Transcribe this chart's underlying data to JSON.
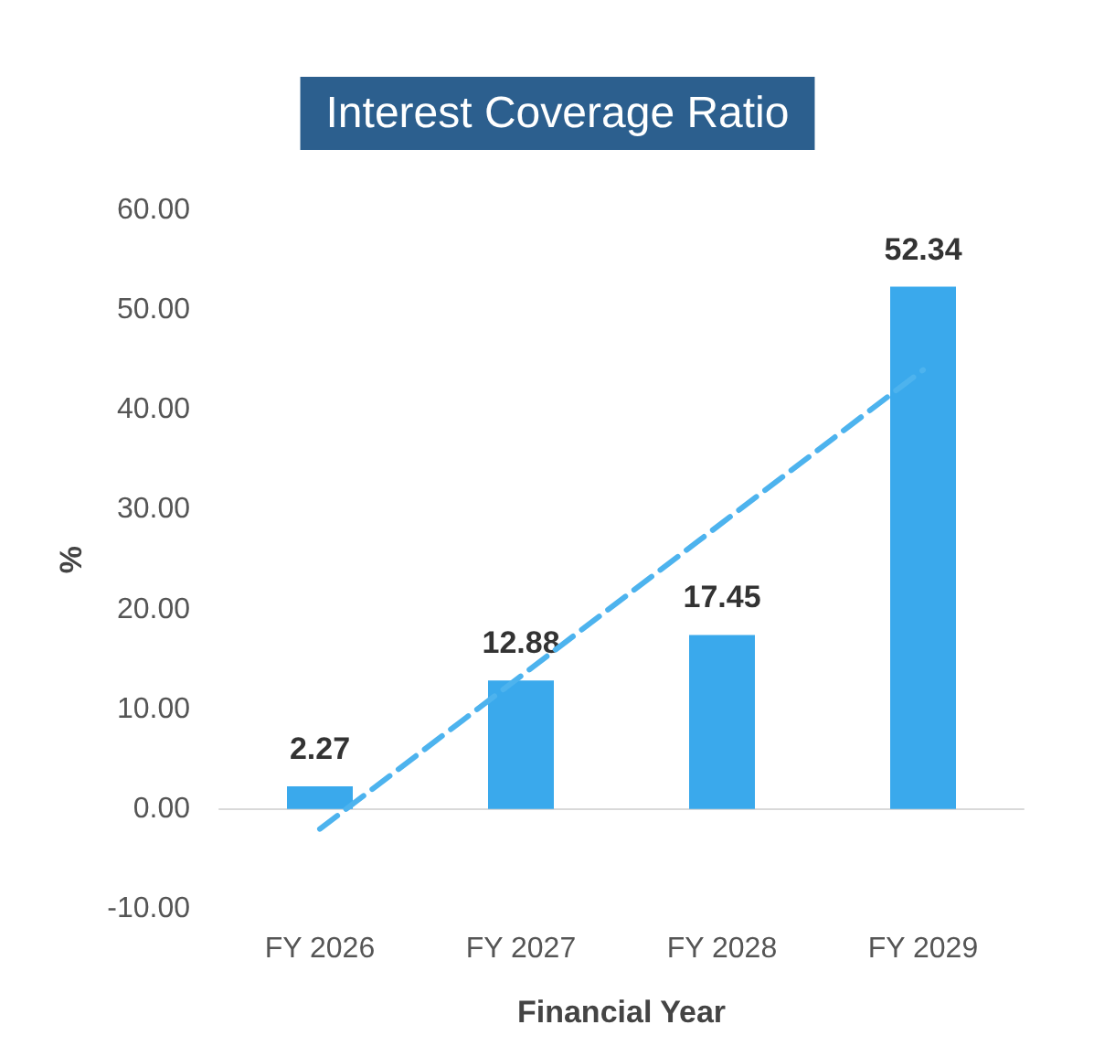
{
  "chart_data": {
    "type": "bar",
    "title": "Interest Coverage Ratio",
    "xlabel": "Financial Year",
    "ylabel": "%",
    "categories": [
      "FY 2026",
      "FY 2027",
      "FY 2028",
      "FY 2029"
    ],
    "series": [
      {
        "color": "#3aa9ec",
        "values": [
          2.27,
          12.88,
          17.45,
          52.34
        ],
        "data_labels": true
      },
      {
        "type": "line",
        "color": "#4db3ee",
        "x": [
          "FY 2026",
          "FY 2029"
        ],
        "values": [
          -2,
          44
        ],
        "line_style": "dashed",
        "marker": "none"
      }
    ],
    "ylim": [
      -10,
      60
    ],
    "yticks": [
      {
        "value": -10,
        "label": "-10.00"
      },
      {
        "value": 0,
        "label": "0.00"
      },
      {
        "value": 10,
        "label": "10.00"
      },
      {
        "value": 20,
        "label": "20.00"
      },
      {
        "value": 30,
        "label": "30.00"
      },
      {
        "value": 40,
        "label": "40.00"
      },
      {
        "value": 50,
        "label": "50.00"
      },
      {
        "value": 60,
        "label": "60.00"
      }
    ],
    "tick_labels": true
  }
}
